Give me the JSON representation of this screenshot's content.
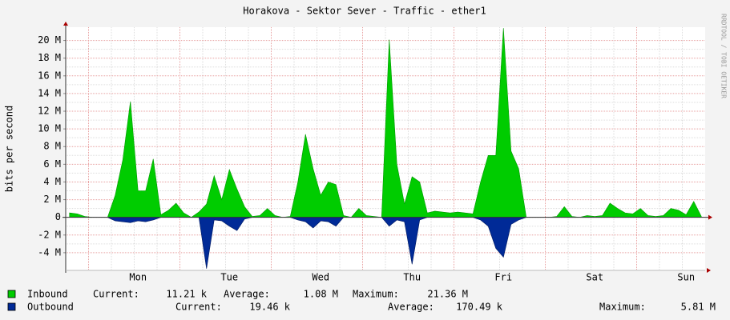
{
  "chart_data": {
    "type": "area",
    "title": "Horakova - Sektor Sever - Traffic - ether1",
    "y_label": "bits per second",
    "watermark": "RRDTOOL / TOBI OETIKER",
    "categories": [
      null,
      null,
      null,
      null,
      null,
      null,
      null,
      null,
      null,
      "Mon",
      null,
      null,
      null,
      null,
      null,
      null,
      null,
      null,
      null,
      null,
      null,
      "Tue",
      null,
      null,
      null,
      null,
      null,
      null,
      null,
      null,
      null,
      null,
      null,
      "Wed",
      null,
      null,
      null,
      null,
      null,
      null,
      null,
      null,
      null,
      null,
      null,
      "Thu",
      null,
      null,
      null,
      null,
      null,
      null,
      null,
      null,
      null,
      null,
      null,
      "Fri",
      null,
      null,
      null,
      null,
      null,
      null,
      null,
      null,
      null,
      null,
      null,
      "Sat",
      null,
      null,
      null,
      null,
      null,
      null,
      null,
      null,
      null,
      null,
      null,
      "Sun",
      null,
      null
    ],
    "series": [
      {
        "name": "Inbound",
        "color": "#00cc00",
        "outline": "#009900",
        "stats": [
          [
            "Current:",
            "11.21 k"
          ],
          [
            "Average:",
            "1.08 M"
          ],
          [
            "Maximum:",
            "21.36 M"
          ]
        ],
        "values": [
          500000,
          400000,
          100000,
          0,
          0,
          0,
          2500000,
          6500000,
          13100000,
          3000000,
          3000000,
          6600000,
          300000,
          800000,
          1600000,
          500000,
          0,
          600000,
          1500000,
          4700000,
          2000000,
          5400000,
          3200000,
          1200000,
          100000,
          200000,
          1000000,
          200000,
          0,
          100000,
          4000000,
          9400000,
          5500000,
          2500000,
          4000000,
          3700000,
          200000,
          0,
          1000000,
          200000,
          100000,
          0,
          20100000,
          6000000,
          1500000,
          4600000,
          4000000,
          500000,
          700000,
          600000,
          500000,
          600000,
          500000,
          400000,
          4000000,
          7000000,
          7000000,
          21400000,
          7500000,
          5500000,
          0,
          0,
          0,
          0,
          100000,
          1200000,
          100000,
          0,
          200000,
          100000,
          200000,
          1600000,
          1000000,
          500000,
          400000,
          1000000,
          200000,
          100000,
          200000,
          1000000,
          800000,
          300000,
          1800000,
          100000
        ]
      },
      {
        "name": "Outbound",
        "color": "#002a97",
        "outline": "#001a60",
        "stats": [
          [
            "Current:",
            "19.46 k"
          ],
          [
            "Average:",
            "170.49 k"
          ],
          [
            "Maximum:",
            "5.81 M"
          ]
        ],
        "values": [
          0,
          0,
          0,
          0,
          0,
          0,
          -400000,
          -500000,
          -600000,
          -400000,
          -500000,
          -300000,
          0,
          0,
          0,
          0,
          0,
          0,
          -5800000,
          -300000,
          -400000,
          -1000000,
          -1500000,
          -200000,
          0,
          0,
          0,
          0,
          0,
          0,
          -300000,
          -500000,
          -1200000,
          -400000,
          -500000,
          -1000000,
          0,
          0,
          0,
          0,
          0,
          0,
          -1000000,
          -300000,
          -500000,
          -5300000,
          -300000,
          0,
          0,
          0,
          0,
          0,
          0,
          0,
          -300000,
          -1000000,
          -3500000,
          -4500000,
          -800000,
          -300000,
          0,
          0,
          0,
          0,
          0,
          0,
          0,
          0,
          0,
          0,
          0,
          0,
          0,
          0,
          0,
          0,
          0,
          0,
          0,
          0,
          0,
          0,
          0,
          0
        ]
      }
    ],
    "ylim": [
      -6000000,
      21500000
    ],
    "yticks": [
      {
        "value": -4000000,
        "label": "-4 M"
      },
      {
        "value": -2000000,
        "label": "-2 M"
      },
      0,
      {
        "value": 2000000,
        "label": "2 M"
      },
      {
        "value": 4000000,
        "label": "4 M"
      },
      {
        "value": 6000000,
        "label": "6 M"
      },
      {
        "value": 8000000,
        "label": "8 M"
      },
      {
        "value": 10000000,
        "label": "10 M"
      },
      {
        "value": 12000000,
        "label": "12 M"
      },
      {
        "value": 14000000,
        "label": "14 M"
      },
      {
        "value": 16000000,
        "label": "16 M"
      },
      {
        "value": 18000000,
        "label": "18 M"
      },
      {
        "value": 20000000,
        "label": "20 M"
      }
    ],
    "grid": true
  }
}
